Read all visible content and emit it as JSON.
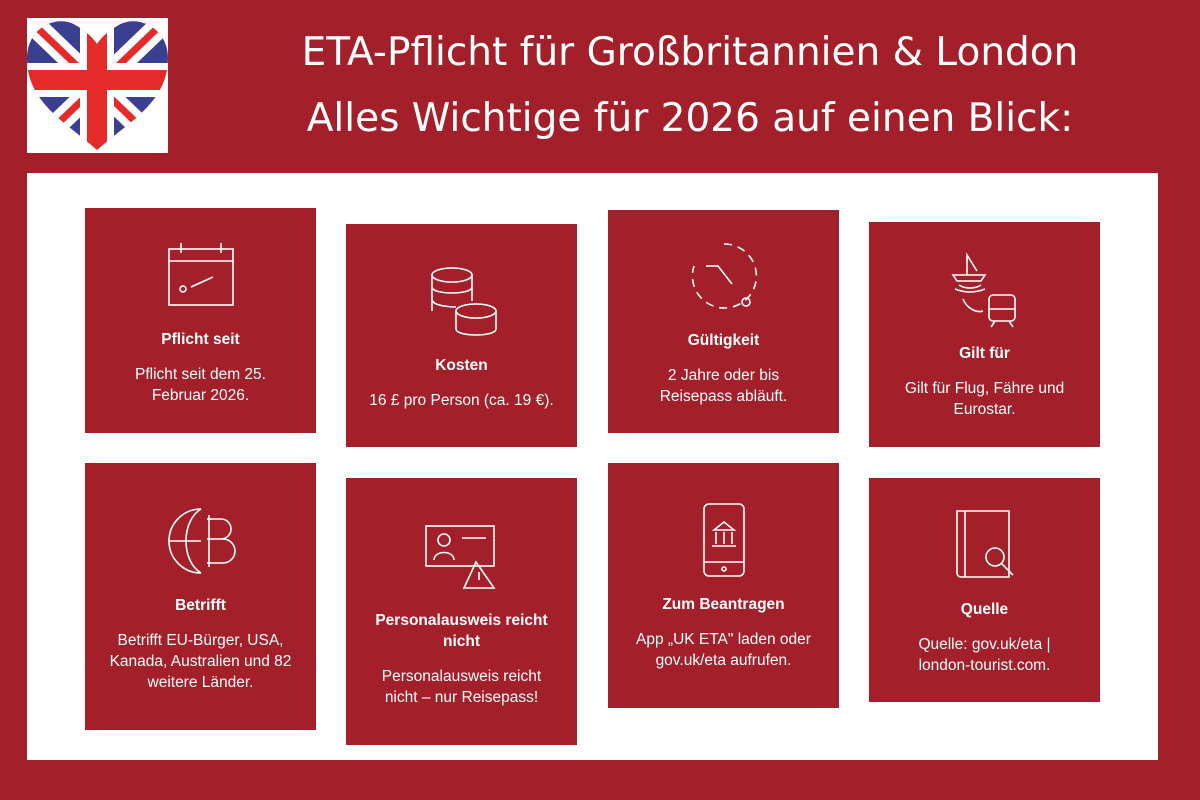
{
  "header": {
    "title_line1": "ETA-Pflicht für Großbritannien & London",
    "title_line2": "Alles Wichtige für 2026 auf einen Blick:"
  },
  "cards": [
    {
      "title": "Pflicht seit",
      "text": "Pflicht seit dem 25. Februar 2026."
    },
    {
      "title": "Kosten",
      "text": "16 £ pro Person (ca. 19 €)."
    },
    {
      "title": "Gültigkeit",
      "text": "2 Jahre oder bis Reisepass abläuft."
    },
    {
      "title": "Gilt für",
      "text": "Gilt für Flug, Fähre und Eurostar."
    },
    {
      "title": "Betrifft",
      "text": "Betrifft EU-Bürger, USA, Kanada, Australien und 82 weitere Länder."
    },
    {
      "title": "Personalausweis reicht nicht",
      "text": "Personalausweis reicht nicht – nur Reisepass!"
    },
    {
      "title": "Zum Beantragen",
      "text": "App „UK ETA\" laden oder gov.uk/eta aufrufen."
    },
    {
      "title": "Quelle",
      "text": "Quelle: gov.uk/eta | london-tourist.com."
    }
  ]
}
